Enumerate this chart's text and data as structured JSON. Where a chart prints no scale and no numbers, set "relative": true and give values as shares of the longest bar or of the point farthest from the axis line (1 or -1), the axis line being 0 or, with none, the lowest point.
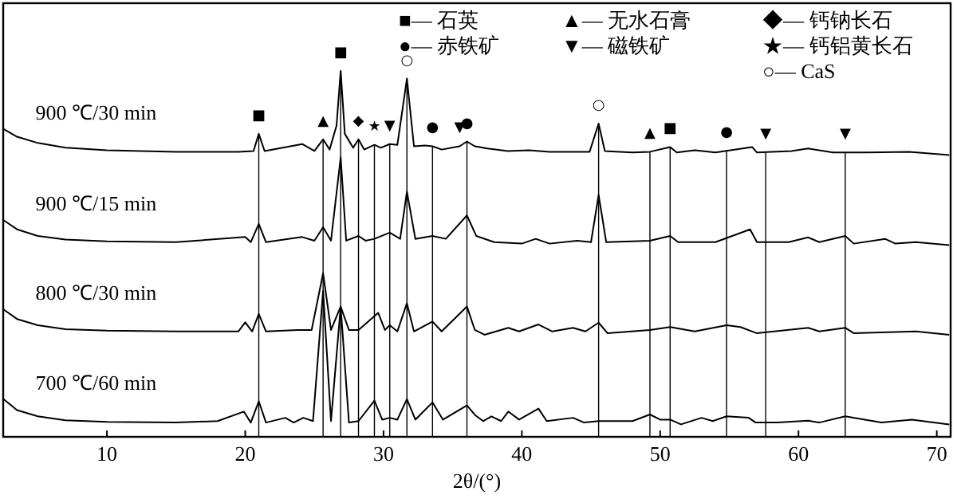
{
  "chart_data": {
    "type": "line",
    "relative": true,
    "xlabel": "2θ/(°)",
    "xlim": [
      2.5,
      71
    ],
    "xticks": [
      10,
      20,
      30,
      40,
      50,
      60,
      70
    ],
    "tick_labels": "x",
    "series": [
      {
        "name": "900 ℃/30 min",
        "color": "#000000",
        "x": [
          2.53,
          3.5,
          5,
          7,
          10,
          15,
          19.5,
          20.6,
          20.98,
          21.4,
          24.12,
          25.0,
          25.63,
          26.1,
          26.6,
          26.9,
          27.2,
          27.8,
          28.19,
          28.6,
          29.34,
          29.8,
          30.45,
          31.0,
          31.69,
          32.2,
          33.0,
          33.54,
          34.2,
          35.5,
          36.03,
          36.6,
          37.5,
          39,
          40.5,
          42,
          44.9,
          45.55,
          46.0,
          48,
          49.26,
          50.72,
          51.2,
          52.5,
          54.0,
          56.65,
          57.0,
          59.5,
          60.7,
          62.5,
          65,
          68,
          70.9
        ],
        "values": [
          0.841,
          0.82,
          0.803,
          0.79,
          0.783,
          0.779,
          0.779,
          0.781,
          0.828,
          0.781,
          0.8,
          0.781,
          0.813,
          0.785,
          0.85,
          1.0,
          0.828,
          0.79,
          0.813,
          0.785,
          0.798,
          0.79,
          0.8,
          0.798,
          0.979,
          0.794,
          0.796,
          0.794,
          0.785,
          0.794,
          0.807,
          0.794,
          0.788,
          0.781,
          0.783,
          0.779,
          0.779,
          0.856,
          0.781,
          0.777,
          0.779,
          0.792,
          0.777,
          0.783,
          0.777,
          0.792,
          0.777,
          0.781,
          0.788,
          0.777,
          0.777,
          0.779,
          0.77
        ]
      },
      {
        "name": "900 ℃/15 min",
        "color": "#000000",
        "x": [
          2.53,
          3.5,
          5,
          7,
          10,
          15,
          20.0,
          20.4,
          20.98,
          21.5,
          24.12,
          25.0,
          25.63,
          26.2,
          26.9,
          27.3,
          28.19,
          28.7,
          29.34,
          30.45,
          31.2,
          31.69,
          32.3,
          33.54,
          34.5,
          36.03,
          36.7,
          38,
          40,
          41,
          42,
          44,
          45.0,
          45.55,
          46.1,
          49.26,
          50.72,
          51.3,
          54,
          56.5,
          57,
          59.3,
          60.7,
          61.5,
          63.38,
          64,
          66.26,
          67,
          68.5,
          70.9
        ],
        "values": [
          0.592,
          0.567,
          0.549,
          0.539,
          0.534,
          0.532,
          0.546,
          0.532,
          0.582,
          0.532,
          0.546,
          0.536,
          0.573,
          0.536,
          0.764,
          0.536,
          0.549,
          0.536,
          0.541,
          0.558,
          0.541,
          0.67,
          0.541,
          0.549,
          0.541,
          0.605,
          0.549,
          0.532,
          0.528,
          0.541,
          0.528,
          0.536,
          0.532,
          0.661,
          0.532,
          0.536,
          0.549,
          0.532,
          0.532,
          0.567,
          0.532,
          0.532,
          0.545,
          0.532,
          0.549,
          0.528,
          0.541,
          0.528,
          0.532,
          0.524
        ]
      },
      {
        "name": "800 ℃/30 min",
        "color": "#000000",
        "x": [
          2.53,
          3.5,
          5,
          7,
          10,
          15,
          19.5,
          20.0,
          20.5,
          20.98,
          21.5,
          23.8,
          24.8,
          25.63,
          26.2,
          26.9,
          27.5,
          28.19,
          29.61,
          30.1,
          30.45,
          31.0,
          31.69,
          32.2,
          33.54,
          34.2,
          36.03,
          36.6,
          37.3,
          39.02,
          39.8,
          41.2,
          42.2,
          43.7,
          44.6,
          45.55,
          46.2,
          49.26,
          50.72,
          52.5,
          54.8,
          55.8,
          57,
          60.7,
          61.5,
          63.38,
          64,
          68.5,
          70.9
        ],
        "values": [
          0.348,
          0.322,
          0.305,
          0.294,
          0.29,
          0.288,
          0.288,
          0.313,
          0.288,
          0.336,
          0.288,
          0.292,
          0.292,
          0.447,
          0.292,
          0.356,
          0.292,
          0.292,
          0.339,
          0.292,
          0.305,
          0.288,
          0.365,
          0.288,
          0.315,
          0.288,
          0.356,
          0.292,
          0.279,
          0.298,
          0.288,
          0.307,
          0.288,
          0.298,
          0.288,
          0.312,
          0.283,
          0.292,
          0.3,
          0.288,
          0.305,
          0.3,
          0.283,
          0.298,
          0.288,
          0.298,
          0.283,
          0.288,
          0.279
        ]
      },
      {
        "name": "700 ℃/60 min",
        "color": "#000000",
        "x": [
          2.53,
          3.5,
          5,
          7,
          10,
          15,
          18,
          19.9,
          20.4,
          20.98,
          21.5,
          22.9,
          23.5,
          24.2,
          24.9,
          25.63,
          26.2,
          26.9,
          27.5,
          28.19,
          29.34,
          29.9,
          30.45,
          31.0,
          31.69,
          32.3,
          33.54,
          34.3,
          36.03,
          36.6,
          37.2,
          37.8,
          38.5,
          39.02,
          39.8,
          41.2,
          41.8,
          43.7,
          44.5,
          45.55,
          48.0,
          49.26,
          50.0,
          50.72,
          51.5,
          53.0,
          53.8,
          54.8,
          56.4,
          56.9,
          58.5,
          60.7,
          61.5,
          63.38,
          64.8,
          66,
          68.2,
          70.9
        ],
        "values": [
          0.103,
          0.073,
          0.056,
          0.045,
          0.041,
          0.039,
          0.043,
          0.069,
          0.039,
          0.097,
          0.039,
          0.052,
          0.039,
          0.052,
          0.043,
          0.399,
          0.043,
          0.356,
          0.039,
          0.043,
          0.099,
          0.047,
          0.052,
          0.047,
          0.103,
          0.047,
          0.094,
          0.047,
          0.086,
          0.06,
          0.043,
          0.056,
          0.043,
          0.069,
          0.047,
          0.077,
          0.043,
          0.052,
          0.039,
          0.043,
          0.043,
          0.061,
          0.047,
          0.047,
          0.034,
          0.052,
          0.043,
          0.056,
          0.052,
          0.039,
          0.039,
          0.044,
          0.039,
          0.056,
          0.047,
          0.039,
          0.047,
          0.034
        ]
      }
    ],
    "ref_lines": [
      {
        "axis": "x",
        "value": 20.98,
        "color": "#000000",
        "line_style": "solid"
      },
      {
        "axis": "x",
        "value": 25.63,
        "color": "#000000",
        "line_style": "solid"
      },
      {
        "axis": "x",
        "value": 26.9,
        "color": "#000000",
        "line_style": "solid"
      },
      {
        "axis": "x",
        "value": 28.19,
        "color": "#000000",
        "line_style": "solid"
      },
      {
        "axis": "x",
        "value": 29.34,
        "color": "#000000",
        "line_style": "solid"
      },
      {
        "axis": "x",
        "value": 30.45,
        "color": "#000000",
        "line_style": "solid"
      },
      {
        "axis": "x",
        "value": 31.69,
        "color": "#000000",
        "line_style": "solid"
      },
      {
        "axis": "x",
        "value": 33.54,
        "color": "#000000",
        "line_style": "solid"
      },
      {
        "axis": "x",
        "value": 36.03,
        "color": "#000000",
        "line_style": "solid"
      },
      {
        "axis": "x",
        "value": 45.55,
        "color": "#000000",
        "line_style": "solid"
      },
      {
        "axis": "x",
        "value": 49.26,
        "color": "#000000",
        "line_style": "solid"
      },
      {
        "axis": "x",
        "value": 50.72,
        "color": "#000000",
        "line_style": "solid"
      },
      {
        "axis": "x",
        "value": 54.8,
        "color": "#000000",
        "line_style": "solid"
      },
      {
        "axis": "x",
        "value": 57.63,
        "color": "#000000",
        "line_style": "solid"
      },
      {
        "axis": "x",
        "value": 63.38,
        "color": "#000000",
        "line_style": "solid"
      }
    ],
    "annotations": [
      "■— 石英",
      "●— 赤铁矿",
      "▲— 无水石膏",
      "▼— 磁铁矿",
      "◆— 钙钠长石",
      "★— 钙铝黄长石",
      "○— CaS",
      {
        "text": "■",
        "x": 20.98,
        "y": 0.828
      },
      {
        "text": "■",
        "x": 26.9,
        "y": 1.0
      },
      {
        "text": "■",
        "x": 50.72,
        "y": 0.792
      },
      {
        "text": "▲",
        "x": 25.63,
        "y": 0.813
      },
      {
        "text": "▲",
        "x": 49.26,
        "y": 0.779
      },
      {
        "text": "◆",
        "x": 28.19,
        "y": 0.813
      },
      {
        "text": "●",
        "x": 33.54,
        "y": 0.794
      },
      {
        "text": "●",
        "x": 36.03,
        "y": 0.807
      },
      {
        "text": "●",
        "x": 54.8,
        "y": 0.781
      },
      {
        "text": "▼",
        "x": 30.45,
        "y": 0.8
      },
      {
        "text": "▼",
        "x": 35.5,
        "y": 0.794
      },
      {
        "text": "▼",
        "x": 57.63,
        "y": 0.778
      },
      {
        "text": "▼",
        "x": 63.38,
        "y": 0.777
      },
      {
        "text": "★",
        "x": 29.34,
        "y": 0.798
      },
      {
        "text": "○",
        "x": 31.69,
        "y": 0.979
      },
      {
        "text": "○",
        "x": 45.55,
        "y": 0.856
      }
    ]
  }
}
